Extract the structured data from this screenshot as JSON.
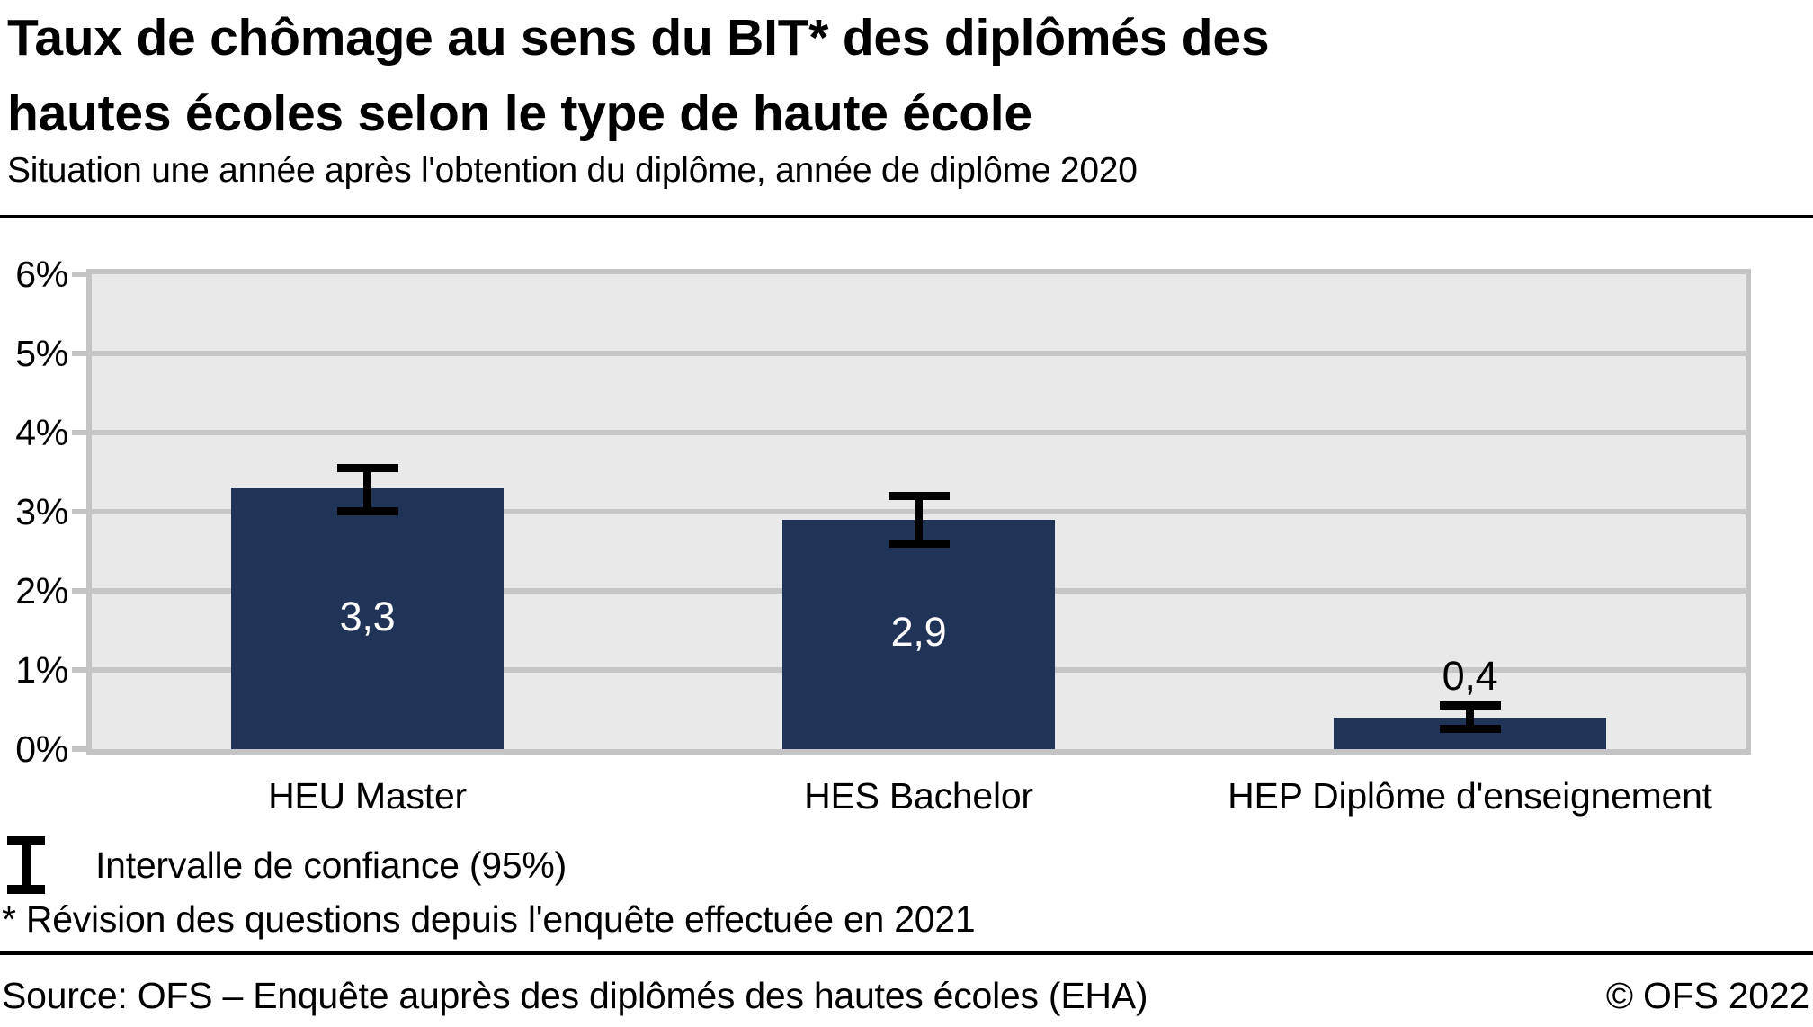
{
  "header": {
    "title_line1": "Taux de chômage au sens du BIT* des diplômés des",
    "title_line2": "hautes écoles selon le type de haute école",
    "subtitle": "Situation une année après l'obtention du diplôme, année de diplôme 2020"
  },
  "chart_data": {
    "type": "bar",
    "title": "Taux de chômage au sens du BIT* des diplômés des hautes écoles selon le type de haute école",
    "subtitle": "Situation une année après l'obtention du diplôme, année de diplôme 2020",
    "categories": [
      "HEU Master",
      "HES Bachelor",
      "HEP Diplôme d'enseignement"
    ],
    "values": [
      3.3,
      2.9,
      0.4
    ],
    "value_labels": [
      "3,3",
      "2,9",
      "0,4"
    ],
    "value_label_colors": [
      "#ffffff",
      "#ffffff",
      "#000000"
    ],
    "value_label_position": [
      "inside",
      "inside",
      "above"
    ],
    "confidence_intervals": [
      [
        3.0,
        3.55
      ],
      [
        2.6,
        3.2
      ],
      [
        0.25,
        0.55
      ]
    ],
    "xlabel": "",
    "ylabel": "",
    "ylim": [
      0,
      6
    ],
    "ytick_step": 1,
    "ytick_labels": [
      "0%",
      "1%",
      "2%",
      "3%",
      "4%",
      "5%",
      "6%"
    ],
    "grid": true,
    "legend_position": "bottom-left",
    "colors": {
      "bar": "#203457",
      "plot_background": "#e9e9e9",
      "gridline": "#c6c6c6",
      "frame": "#c4c4c4",
      "error_bar": "#000000"
    }
  },
  "legend": {
    "icon": "error-bar-icon",
    "label": "Intervalle de confiance (95%)"
  },
  "footnote": "* Révision des questions depuis l'enquête effectuée en 2021",
  "footer": {
    "source": "Source: OFS – Enquête auprès des diplômés des hautes écoles (EHA)",
    "copyright": "© OFS 2022"
  }
}
